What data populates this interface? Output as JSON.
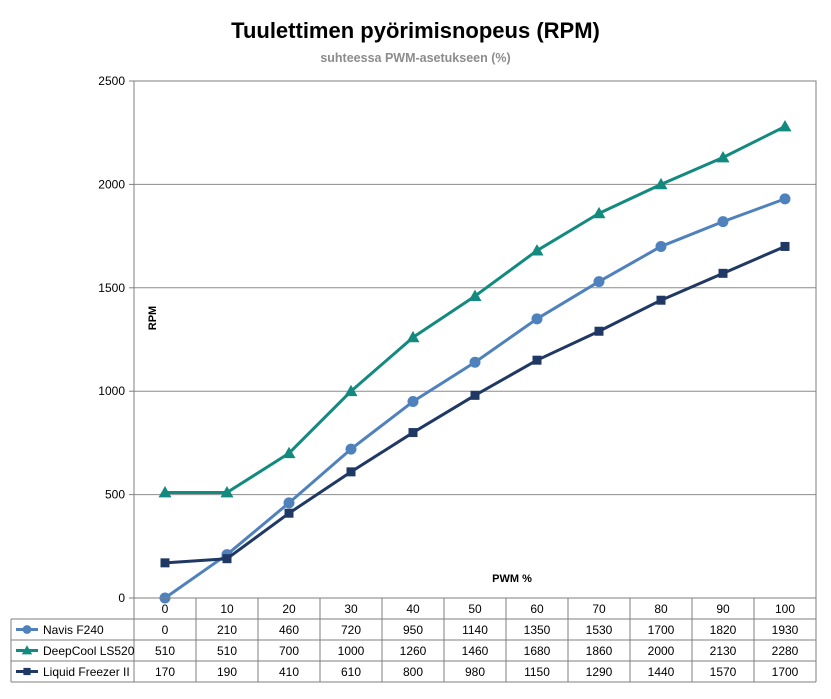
{
  "chart_data": {
    "type": "line",
    "title": "Tuulettimen pyörimisnopeus (RPM)",
    "subtitle": "suhteessa PWM-asetukseen (%)",
    "xlabel": "PWM %",
    "ylabel": "RPM",
    "x": [
      0,
      10,
      20,
      30,
      40,
      50,
      60,
      70,
      80,
      90,
      100
    ],
    "ylim": [
      0,
      2500
    ],
    "yticks": [
      0,
      500,
      1000,
      1500,
      2000,
      2500
    ],
    "grid": true,
    "legend": "data-table",
    "series": [
      {
        "name": "Navis F240",
        "color": "#4f81bd",
        "marker": "circle",
        "values": [
          0,
          210,
          460,
          720,
          950,
          1140,
          1350,
          1530,
          1700,
          1820,
          1930
        ]
      },
      {
        "name": "DeepCool LS520",
        "color": "#138a7f",
        "marker": "triangle",
        "values": [
          510,
          510,
          700,
          1000,
          1260,
          1460,
          1680,
          1860,
          2000,
          2130,
          2280
        ]
      },
      {
        "name": "Liquid Freezer II",
        "color": "#1f3864",
        "marker": "square",
        "values": [
          170,
          190,
          410,
          610,
          800,
          980,
          1150,
          1290,
          1440,
          1570,
          1700
        ]
      }
    ]
  }
}
